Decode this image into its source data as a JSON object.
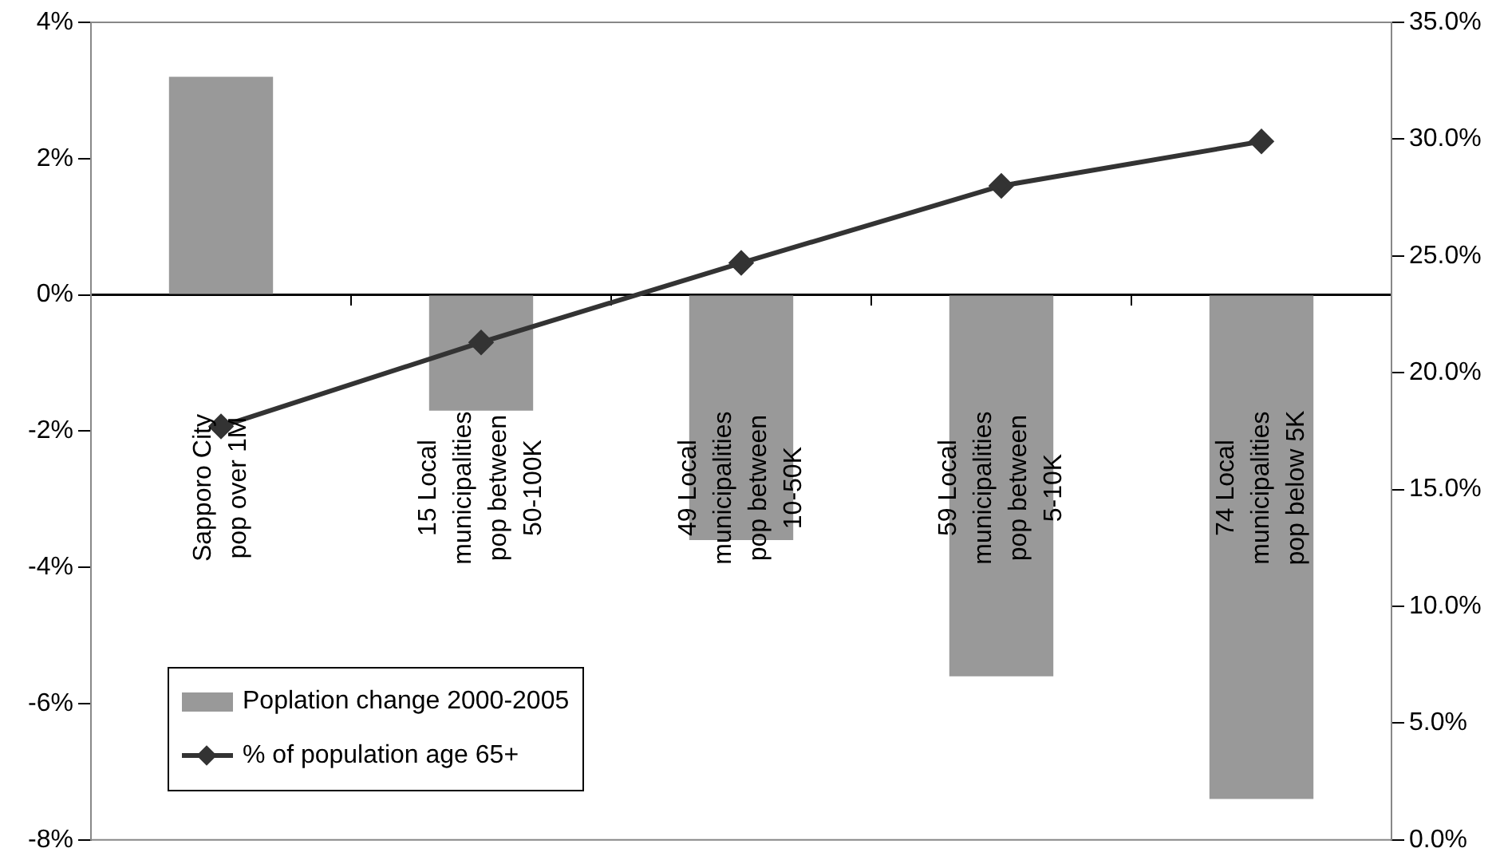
{
  "chart_data": {
    "type": "bar",
    "categories": [
      "Sapporo City\npop over 1M",
      "15 Local\nmunicipalities\npop between\n50-100K",
      "49 Local\nmunicipalities\npop between\n10-50K",
      "59 Local\nmunicipalities\npop between\n5-10K",
      "74 Local\nmunicipalities\npop below 5K"
    ],
    "series": [
      {
        "name": "Poplation change 2000-2005",
        "color": "#999999",
        "values": [
          3.2,
          -1.7,
          -3.6,
          -5.6,
          -7.4
        ]
      },
      {
        "name": "% of population age 65+",
        "type": "line",
        "axis": "y2",
        "color": "#333333",
        "marker": "diamond",
        "values": [
          17.7,
          21.3,
          24.7,
          28.0,
          29.9
        ]
      }
    ],
    "ylim": [
      -8,
      4
    ],
    "yticks": [
      {
        "value": -8,
        "label": "-8%"
      },
      {
        "value": -6,
        "label": "-6%"
      },
      {
        "value": -4,
        "label": "-4%"
      },
      {
        "value": -2,
        "label": "-2%"
      },
      {
        "value": 0,
        "label": "0%"
      },
      {
        "value": 2,
        "label": "2%"
      },
      {
        "value": 4,
        "label": "4%"
      }
    ],
    "y2lim": [
      0,
      35
    ],
    "y2ticks": [
      {
        "value": 0,
        "label": "0.0%"
      },
      {
        "value": 5,
        "label": "5.0%"
      },
      {
        "value": 10,
        "label": "10.0%"
      },
      {
        "value": 15,
        "label": "15.0%"
      },
      {
        "value": 20,
        "label": "20.0%"
      },
      {
        "value": 25,
        "label": "25.0%"
      },
      {
        "value": 30,
        "label": "30.0%"
      },
      {
        "value": 35,
        "label": "35.0%"
      }
    ],
    "legend": "bottom left"
  }
}
